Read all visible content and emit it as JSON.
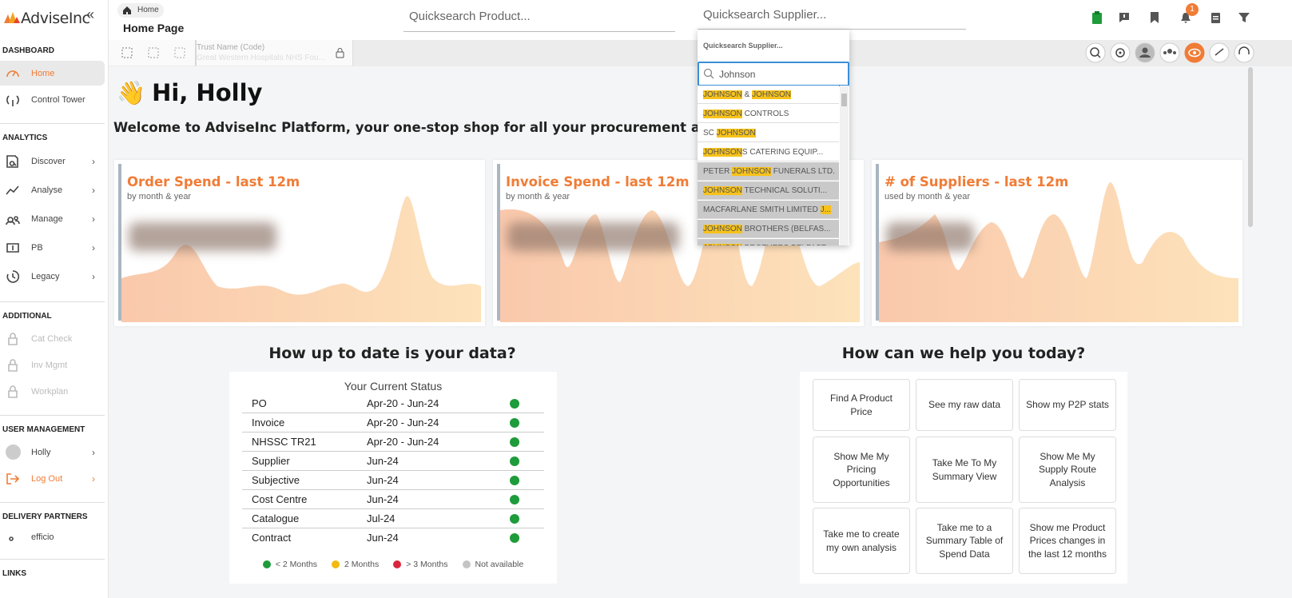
{
  "sidebar": {
    "logo": "AdviseInc",
    "sections": [
      {
        "title": "DASHBOARD",
        "items": [
          {
            "label": "Home",
            "active": true
          },
          {
            "label": "Control Tower"
          }
        ]
      },
      {
        "title": "ANALYTICS",
        "items": [
          {
            "label": "Discover",
            "chevron": true
          },
          {
            "label": "Analyse",
            "chevron": true
          },
          {
            "label": "Manage",
            "chevron": true
          },
          {
            "label": "PB",
            "chevron": true
          },
          {
            "label": "Legacy",
            "chevron": true
          }
        ]
      },
      {
        "title": "ADDITIONAL",
        "items": [
          {
            "label": "Cat Check",
            "locked": true
          },
          {
            "label": "Inv Mgmt",
            "locked": true
          },
          {
            "label": "Workplan",
            "locked": true
          }
        ]
      },
      {
        "title": "USER MANAGEMENT",
        "items": [
          {
            "label": "Holly",
            "chevron": true
          },
          {
            "label": "Log Out",
            "chevron": true,
            "accent": true
          }
        ]
      },
      {
        "title": "DELIVERY PARTNERS",
        "items": [
          {
            "label": "efficio"
          }
        ]
      },
      {
        "title": "LINKS",
        "items": []
      }
    ]
  },
  "topbar": {
    "breadcrumb": "Home",
    "page_title": "Home Page",
    "product_search": "Quicksearch Product...",
    "supplier_search": "Quicksearch Supplier...",
    "notification_count": "1"
  },
  "toolbar": {
    "trust_label": "Trust Name (Code)",
    "trust_value": "Great Western Hospitals NHS Fou..."
  },
  "supplier_dropdown": {
    "header": "Quicksearch Supplier...",
    "query": "Johnson",
    "items": [
      {
        "parts": [
          {
            "text": "JOHNSON",
            "highlight": true
          },
          {
            "text": " & "
          },
          {
            "text": "JOHNSON",
            "highlight": true
          }
        ]
      },
      {
        "parts": [
          {
            "text": "JOHNSON",
            "highlight": true
          },
          {
            "text": " CONTROLS"
          }
        ]
      },
      {
        "parts": [
          {
            "text": "SC "
          },
          {
            "text": "JOHNSON",
            "highlight": true
          }
        ]
      },
      {
        "parts": [
          {
            "text": "JOHNSON",
            "highlight": true
          },
          {
            "text": "S CATERING EQUIP..."
          }
        ]
      },
      {
        "parts": [
          {
            "text": "PETER "
          },
          {
            "text": "JOHNSON",
            "highlight": true
          },
          {
            "text": " FUNERALS LTD."
          }
        ],
        "shaded": true
      },
      {
        "parts": [
          {
            "text": "JOHNSON",
            "highlight": true
          },
          {
            "text": " TECHNICAL SOLUTI..."
          }
        ],
        "shaded": true
      },
      {
        "parts": [
          {
            "text": "MACFARLANE SMITH LIMITED "
          },
          {
            "text": "J...",
            "highlight": true
          }
        ],
        "shaded": true
      },
      {
        "parts": [
          {
            "text": "JOHNSON",
            "highlight": true
          },
          {
            "text": " BROTHERS (BELFAS..."
          }
        ],
        "shaded": true
      },
      {
        "parts": [
          {
            "text": "JOHNSON",
            "highlight": true
          },
          {
            "text": " BROTHERS BELFAST"
          }
        ],
        "shaded": true
      }
    ]
  },
  "greeting": {
    "emoji": "👋",
    "title": "Hi, Holly",
    "welcome": "Welcome to AdviseInc Platform, your one-stop shop for all your procurement analytical"
  },
  "cards": [
    {
      "title": "Order Spend - last 12m",
      "subtitle": "by month & year"
    },
    {
      "title": "Invoice Spend - last 12m",
      "subtitle": "by month & year"
    },
    {
      "title": "# of Suppliers - last 12m",
      "subtitle": "used by month & year"
    }
  ],
  "status": {
    "heading": "How up to date is your data?",
    "title": "Your Current Status",
    "rows": [
      {
        "name": "PO",
        "range": "Apr-20 - Jun-24",
        "color": "#1e9b3a"
      },
      {
        "name": "Invoice",
        "range": "Apr-20 - Jun-24",
        "color": "#1e9b3a"
      },
      {
        "name": "NHSSC TR21",
        "range": "Apr-20 - Jun-24",
        "color": "#1e9b3a"
      },
      {
        "name": "Supplier",
        "range": "Jun-24",
        "color": "#1e9b3a"
      },
      {
        "name": "Subjective",
        "range": "Jun-24",
        "color": "#1e9b3a"
      },
      {
        "name": "Cost Centre",
        "range": "Jun-24",
        "color": "#1e9b3a"
      },
      {
        "name": "Catalogue",
        "range": "Jul-24",
        "color": "#1e9b3a"
      },
      {
        "name": "Contract",
        "range": "Jun-24",
        "color": "#1e9b3a"
      }
    ],
    "legend": [
      {
        "label": "< 2 Months",
        "color": "#1e9b3a"
      },
      {
        "label": "2 Months",
        "color": "#f2b90f"
      },
      {
        "label": "> 3 Months",
        "color": "#d9263c"
      },
      {
        "label": "Not available",
        "color": "#c4c4c4"
      }
    ]
  },
  "help": {
    "heading": "How can we help you today?",
    "buttons": [
      "Find A Product Price",
      "See my raw data",
      "Show my P2P stats",
      "Show Me My Pricing Opportunities",
      "Take Me To My Summary View",
      "Show Me My Supply Route Analysis",
      "Take me to create my own analysis",
      "Take me to a Summary Table of Spend Data",
      "Show me Product Prices changes in the last 12 months"
    ]
  }
}
